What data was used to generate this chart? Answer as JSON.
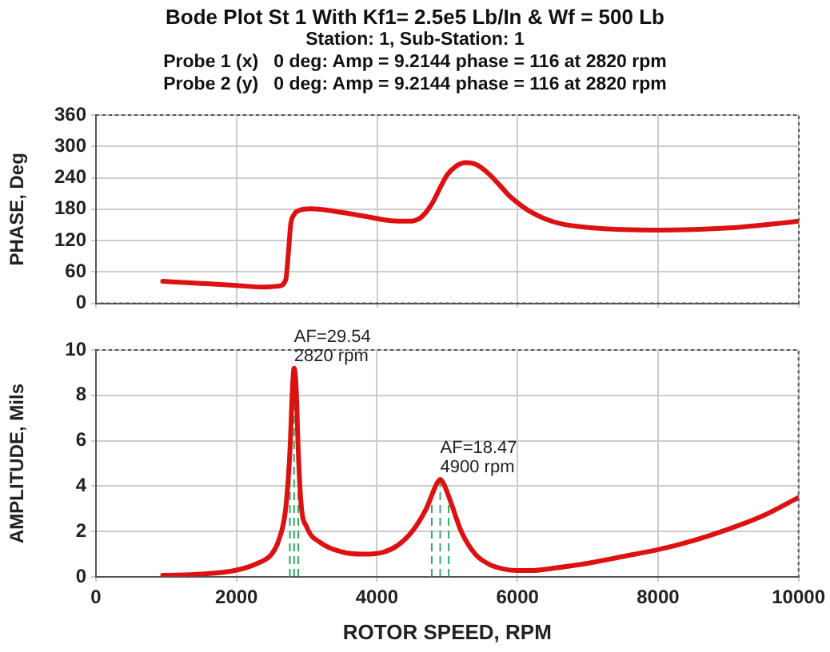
{
  "chart_data": [
    {
      "type": "line",
      "title": "Bode Plot St 1 With Kf1= 2.5e5 Lb/In  &  Wf = 500 Lb",
      "subtitle": "Station: 1, Sub-Station: 1",
      "annotations": [
        "Probe 1 (x)   0 deg: Amp = 9.2144 phase = 116 at 2820 rpm",
        "Probe 2 (y)   0 deg: Amp = 9.2144 phase = 116 at 2820 rpm"
      ],
      "ylabel": "PHASE, Deg",
      "x": [
        950,
        1500,
        2000,
        2400,
        2600,
        2700,
        2740,
        2770,
        2820,
        2900,
        3050,
        3400,
        3800,
        4200,
        4450,
        4600,
        4700,
        4800,
        4900,
        5000,
        5120,
        5270,
        5400,
        5570,
        5750,
        5870,
        6000,
        6170,
        6400,
        6620,
        7000,
        7500,
        8000,
        8500,
        9000,
        9500,
        10000
      ],
      "series": [
        {
          "color": "#dd1111",
          "values": [
            42,
            38,
            34,
            31,
            33,
            45,
            100,
            150,
            170,
            178,
            181,
            176,
            167,
            158,
            157,
            162,
            175,
            195,
            222,
            246,
            262,
            269,
            266,
            250,
            225,
            207,
            192,
            176,
            161,
            152,
            145,
            141,
            140,
            141,
            144,
            150,
            157
          ]
        }
      ],
      "xlim": [
        0,
        10000
      ],
      "xticks": [
        0,
        2000,
        4000,
        6000,
        8000,
        10000
      ],
      "ylim": [
        0,
        360
      ],
      "yticks": [
        0,
        60,
        120,
        180,
        240,
        300,
        360
      ],
      "tick_labels": "y",
      "grid": true,
      "marker": "none",
      "line_style": "solid"
    },
    {
      "type": "line",
      "xlabel": "ROTOR SPEED, RPM",
      "ylabel": "AMPLITUDE, Mils",
      "x": [
        950,
        1500,
        2000,
        2300,
        2500,
        2600,
        2700,
        2760,
        2800,
        2820,
        2850,
        2880,
        2920,
        3000,
        3200,
        3500,
        3800,
        4100,
        4300,
        4500,
        4700,
        4850,
        4900,
        4950,
        5050,
        5200,
        5400,
        5600,
        5800,
        6000,
        6200,
        6500,
        7000,
        7500,
        8000,
        8500,
        9000,
        9500,
        10000
      ],
      "series": [
        {
          "color": "#dd1111",
          "values": [
            0.07,
            0.12,
            0.3,
            0.6,
            1.0,
            1.6,
            3.0,
            5.5,
            8.5,
            9.2,
            8.3,
            5.5,
            3.2,
            2.2,
            1.5,
            1.1,
            1.0,
            1.1,
            1.4,
            2.0,
            3.0,
            4.1,
            4.3,
            4.1,
            3.3,
            2.0,
            1.0,
            0.55,
            0.35,
            0.28,
            0.28,
            0.38,
            0.6,
            0.9,
            1.2,
            1.6,
            2.1,
            2.7,
            3.5
          ]
        }
      ],
      "xlim": [
        0,
        10000
      ],
      "xticks": [
        0,
        2000,
        4000,
        6000,
        8000,
        10000
      ],
      "ylim": [
        0,
        10
      ],
      "yticks": [
        0,
        2,
        4,
        6,
        8,
        10
      ],
      "grid": true,
      "marker": "none",
      "line_style": "solid",
      "ref_lines": [
        {
          "axis": "x",
          "value": 2760,
          "color": "#33aa66",
          "line_style": "dashed"
        },
        {
          "axis": "x",
          "value": 2820,
          "color": "#33aa66",
          "line_style": "dashed"
        },
        {
          "axis": "x",
          "value": 2880,
          "color": "#33aa66",
          "line_style": "dashed"
        },
        {
          "axis": "x",
          "value": 4780,
          "color": "#33aa66",
          "line_style": "dashed"
        },
        {
          "axis": "x",
          "value": 4900,
          "color": "#33aa66",
          "line_style": "dashed"
        },
        {
          "axis": "x",
          "value": 5020,
          "color": "#33aa66",
          "line_style": "dashed"
        }
      ],
      "annotations": [
        {
          "text": "AF=29.54\n2820 rpm",
          "x": 2820,
          "y": 9.2
        },
        {
          "text": "AF=18.47\n4900 rpm",
          "x": 4900,
          "y": 4.3
        }
      ]
    }
  ]
}
